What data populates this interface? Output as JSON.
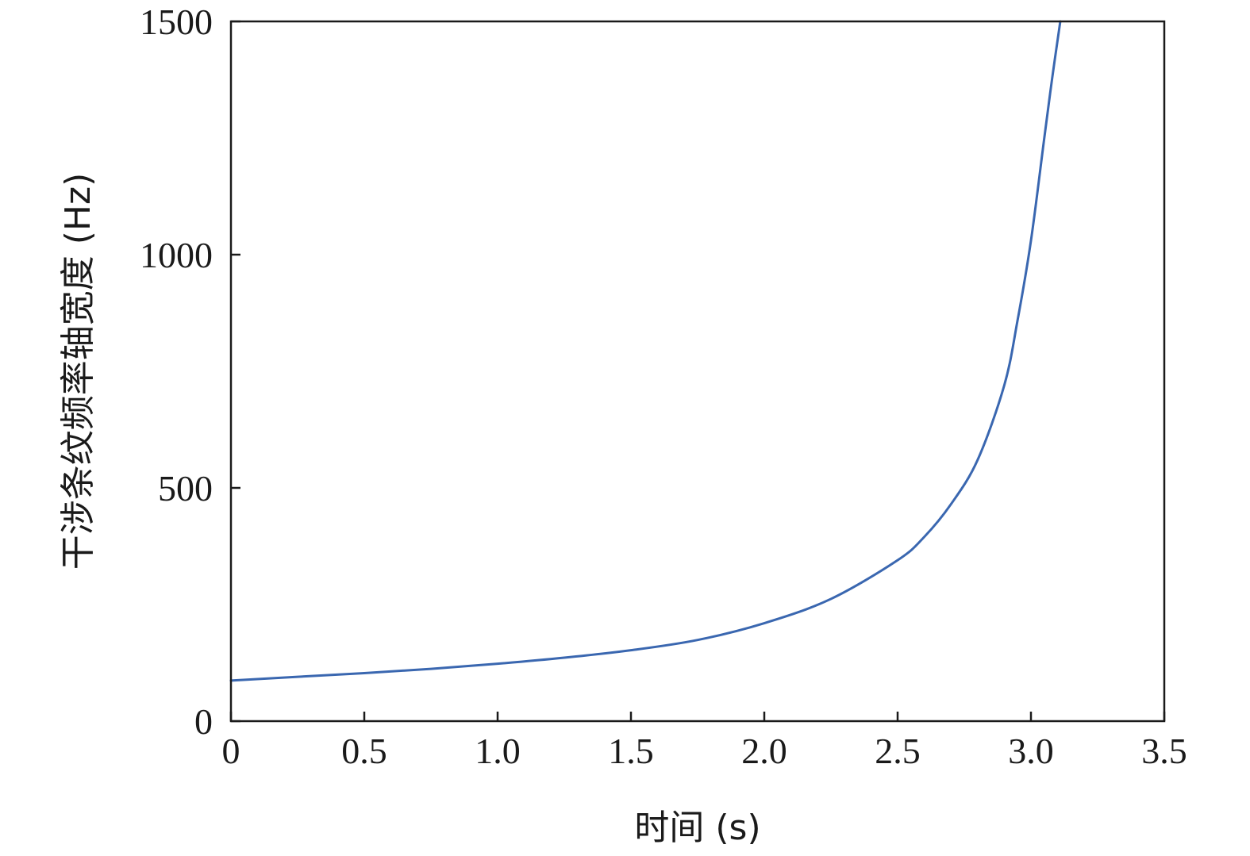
{
  "chart_data": {
    "type": "line",
    "title": "",
    "xlabel": "时间 (s)",
    "ylabel": "干涉条纹频率轴宽度 (Hz)",
    "xlim": [
      0,
      3.5
    ],
    "ylim": [
      0,
      1500
    ],
    "x_ticks": [
      0,
      0.5,
      1.0,
      1.5,
      2.0,
      2.5,
      3.0,
      3.5
    ],
    "x_tick_labels": [
      "0",
      "0.5",
      "1.0",
      "1.5",
      "2.0",
      "2.5",
      "3.0",
      "3.5"
    ],
    "y_ticks": [
      0,
      500,
      1000,
      1500
    ],
    "y_tick_labels": [
      "0",
      "500",
      "1000",
      "1500"
    ],
    "grid": false,
    "legend": "none",
    "series": [
      {
        "color": "#3a67b0",
        "x": [
          0,
          0.25,
          0.5,
          0.75,
          1.0,
          1.25,
          1.5,
          1.75,
          2.0,
          2.25,
          2.5,
          2.6,
          2.7,
          2.8,
          2.9,
          2.95,
          3.0,
          3.05,
          3.08,
          3.11
        ],
        "y": [
          87,
          95,
          103,
          112,
          123,
          136,
          152,
          174,
          210,
          262,
          345,
          395,
          465,
          560,
          720,
          860,
          1030,
          1250,
          1380,
          1500
        ]
      }
    ]
  }
}
